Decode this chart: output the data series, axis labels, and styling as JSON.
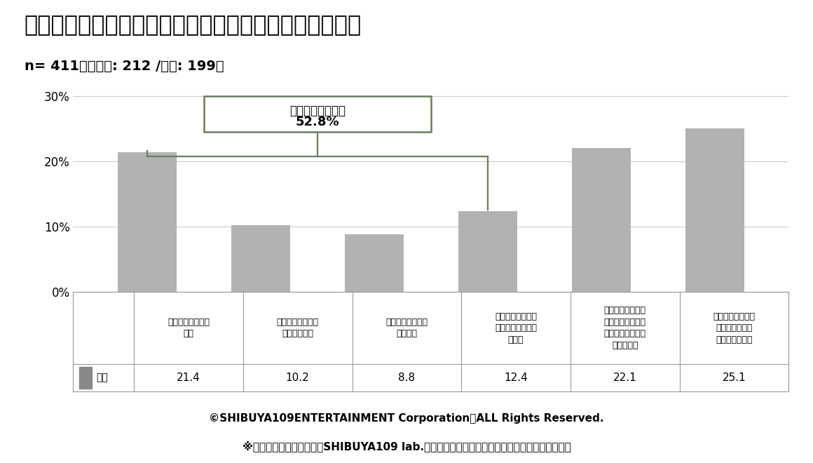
{
  "title": "転職経験・意向の有無を教えてください。（単一回答）",
  "subtitle": "n= 411　（男性: 212 /女性: 199）",
  "categories": [
    "転職をしたことが\nある",
    "現在転職活動中・\n検討中である",
    "数年後に転職を考\nえている",
    "具体的な時期は未\n定だが転職を考え\nている",
    "今は転職を考えて\nいないが、タイミ\nングが合えば転職\nも考えたい",
    "転職は考えていな\nい・今の会社で\nずっと働きたい"
  ],
  "values": [
    21.4,
    10.2,
    8.8,
    12.4,
    22.1,
    25.1
  ],
  "bar_color": "#b2b2b2",
  "annotation_box_line1": "転職経験・意向有",
  "annotation_box_line2": "52.8%",
  "annotation_color": "#6b7c5c",
  "legend_label": "全体",
  "legend_color": "#888888",
  "footer_line1": "©SHIBUYA109ENTERTAINMENT Corporation　ALL Rights Reserved.",
  "footer_line2": "※ご使用の際は、出典元がSHIBUYA109 lab.である旨を明記くださいますようお願いいたします",
  "ylim": [
    0,
    32
  ],
  "yticks": [
    0,
    10,
    20,
    30
  ],
  "ytick_labels": [
    "0%",
    "10%",
    "20%",
    "30%"
  ],
  "background_color": "#ffffff",
  "title_fontsize": 23,
  "subtitle_fontsize": 14,
  "table_values": [
    "21.4",
    "10.2",
    "8.8",
    "12.4",
    "22.1",
    "25.1"
  ]
}
